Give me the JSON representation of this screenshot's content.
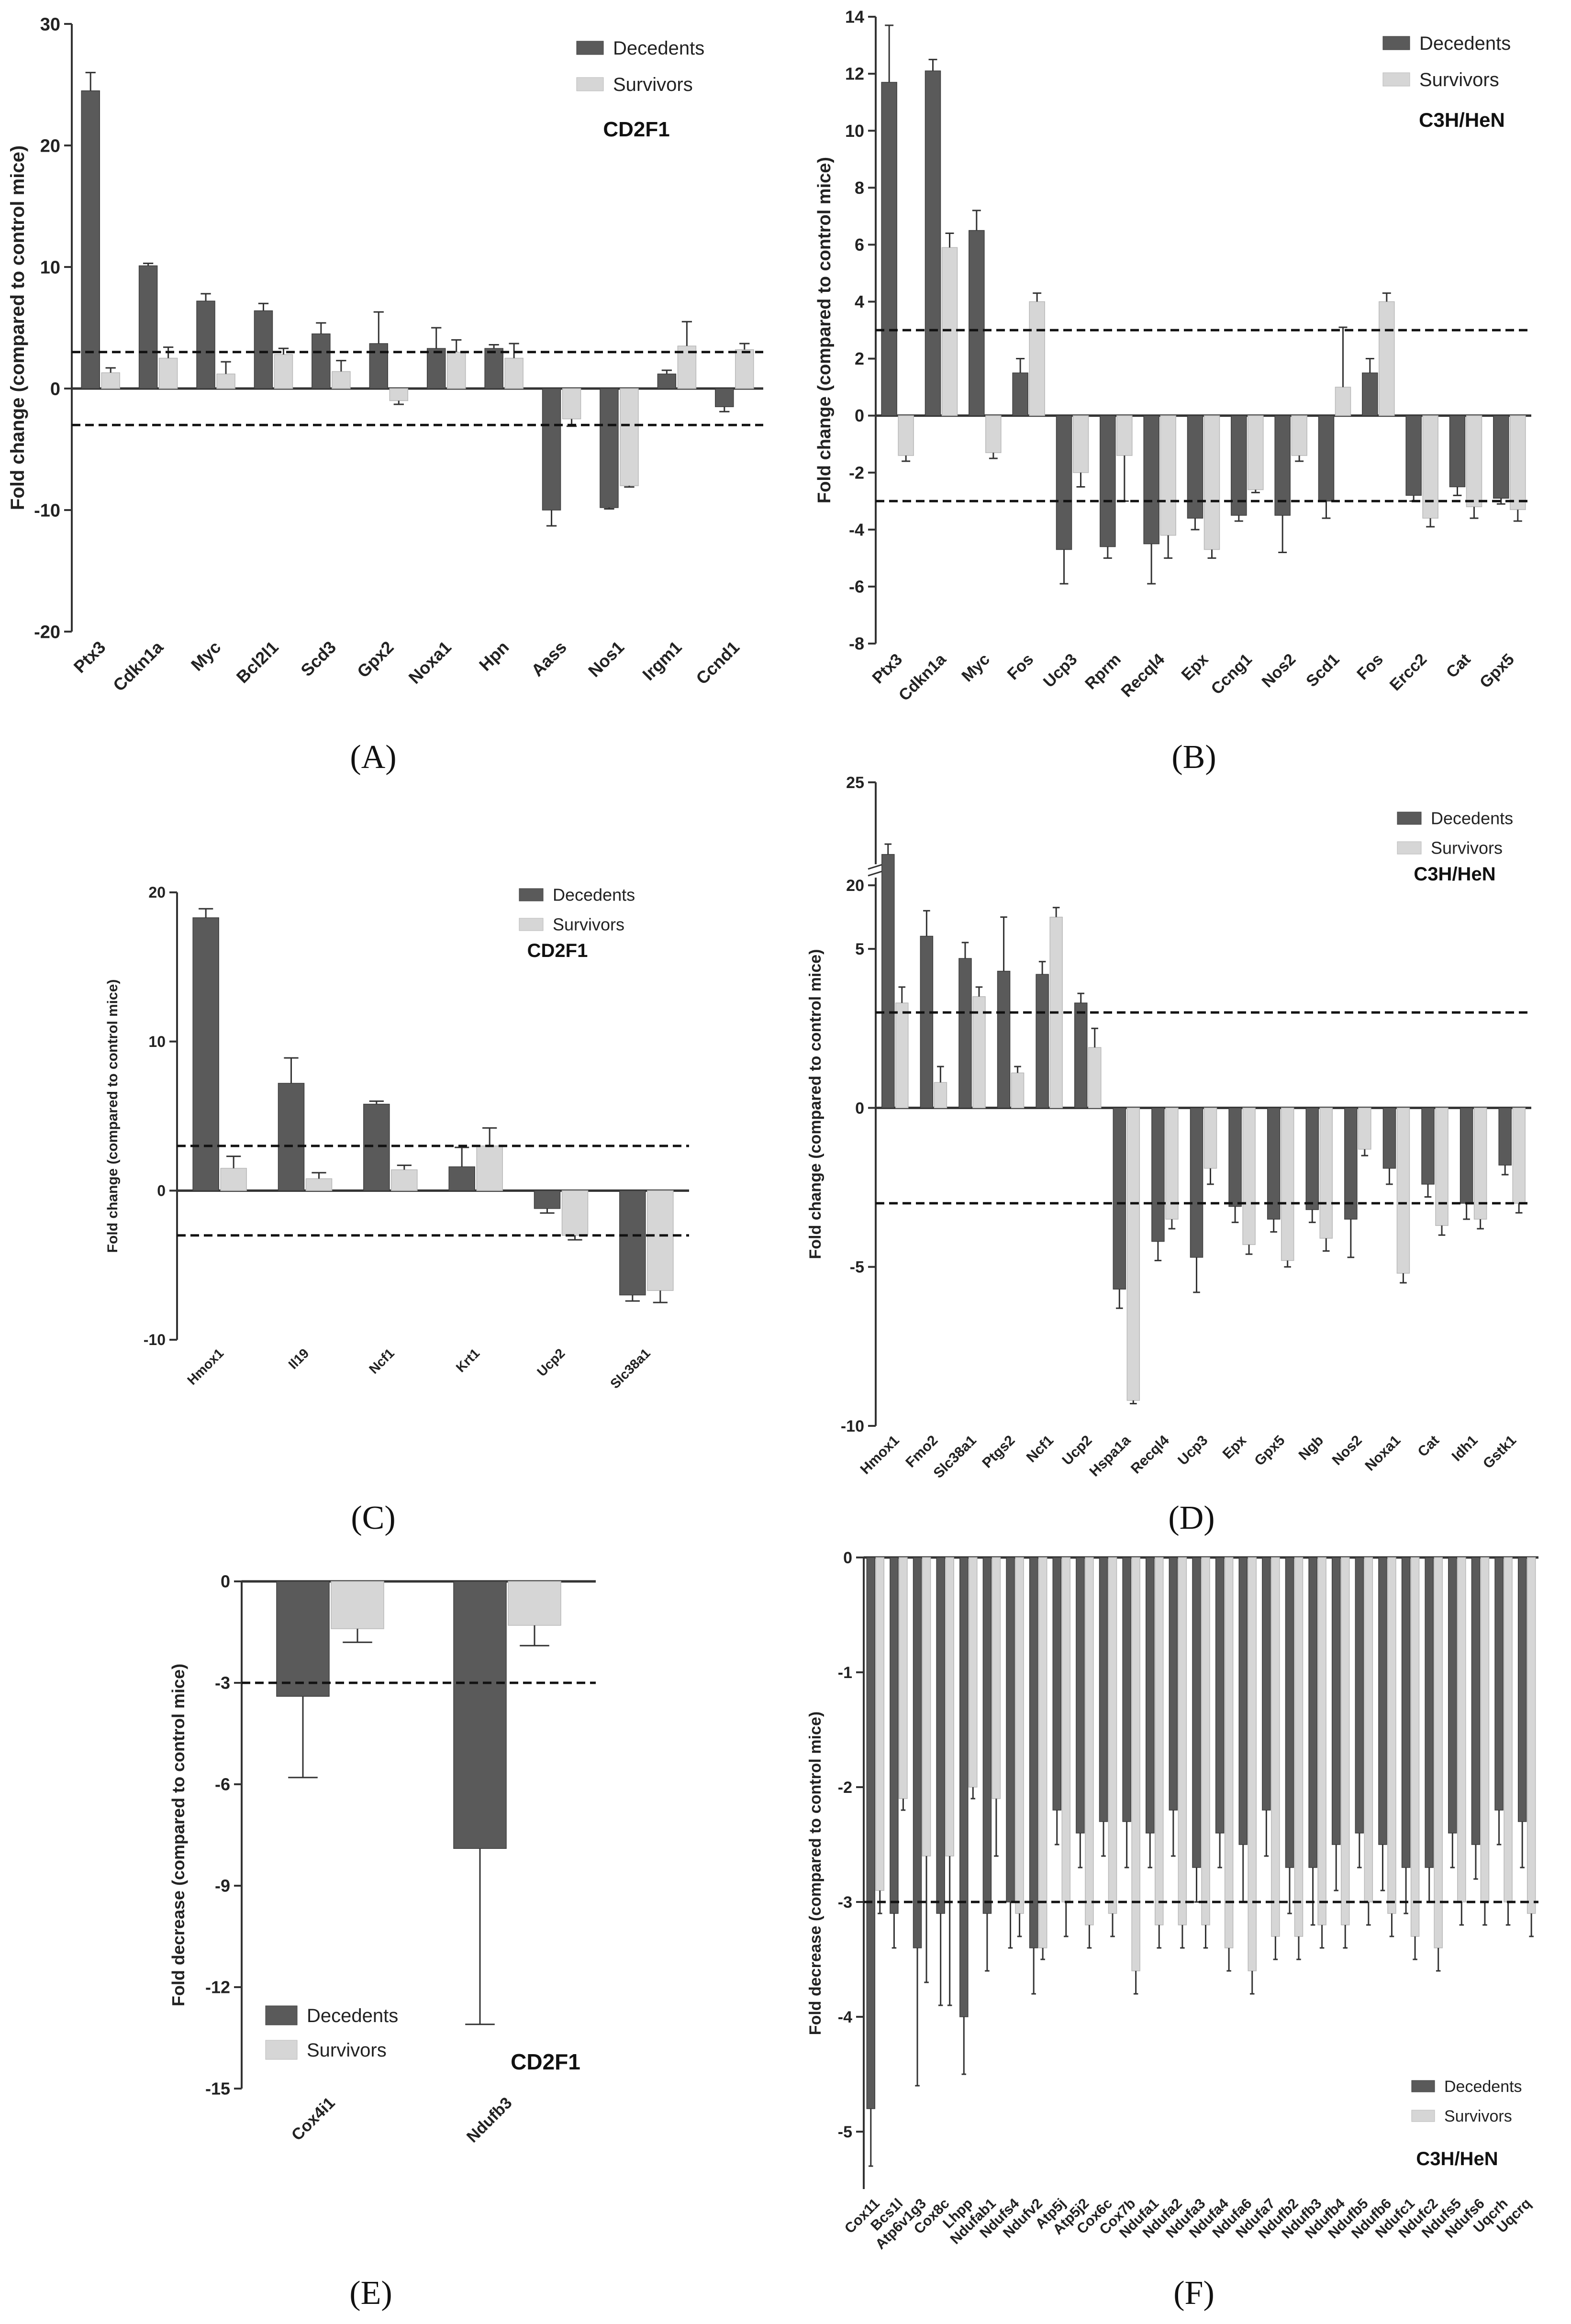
{
  "colors": {
    "decedents": "#5a5a5a",
    "survivors": "#d6d6d6",
    "axis": "#333333",
    "error": "#333333"
  },
  "chart_data": [
    {
      "id": "A",
      "panel_label": "(A)",
      "type": "bar",
      "title": "CD2F1",
      "ylabel": "Fold change (compared to control mice)",
      "ylim": [
        -20,
        30
      ],
      "yticks": [
        -20,
        -10,
        0,
        10,
        20,
        30
      ],
      "threshold_lines": [
        3,
        -3
      ],
      "legend": [
        "Decedents",
        "Survivors"
      ],
      "categories": [
        "Ptx3",
        "Cdkn1a",
        "Myc",
        "Bcl2l1",
        "Scd3",
        "Gpx2",
        "Noxa1",
        "Hpn",
        "Aass",
        "Nos1",
        "Irgm1",
        "Ccnd1"
      ],
      "series": [
        {
          "name": "Decedents",
          "values": [
            24.5,
            10.1,
            7.2,
            6.4,
            4.5,
            3.7,
            3.3,
            3.3,
            -10,
            -9.8,
            1.2,
            -1.5
          ],
          "errors": [
            1.5,
            0.2,
            0.6,
            0.6,
            0.9,
            2.6,
            1.7,
            0.3,
            1.3,
            0.1,
            0.3,
            0.4
          ]
        },
        {
          "name": "Survivors",
          "values": [
            1.3,
            2.5,
            1.2,
            2.8,
            1.4,
            -1,
            3,
            2.5,
            -2.5,
            -8,
            3.5,
            3.2
          ],
          "errors": [
            0.4,
            0.9,
            1,
            0.5,
            0.9,
            0.3,
            1,
            1.2,
            0.6,
            0.1,
            2,
            0.5
          ]
        }
      ]
    },
    {
      "id": "B",
      "panel_label": "(B)",
      "type": "bar",
      "title": "C3H/HeN",
      "ylabel": "Fold change (compared to control mice)",
      "ylim": [
        -8,
        14
      ],
      "yticks": [
        -8,
        -6,
        -4,
        -2,
        0,
        2,
        4,
        6,
        8,
        10,
        12,
        14
      ],
      "threshold_lines": [
        3,
        -3
      ],
      "legend": [
        "Decedents",
        "Survivors"
      ],
      "categories": [
        "Ptx3",
        "Cdkn1a",
        "Myc",
        "Fos",
        "Ucp3",
        "Rprm",
        "Recql4",
        "Epx",
        "Ccng1",
        "Nos2",
        "Scd1",
        "Fos",
        "Ercc2",
        "Cat",
        "Gpx5"
      ],
      "series": [
        {
          "name": "Decedents",
          "values": [
            11.7,
            12.1,
            6.5,
            1.5,
            -4.7,
            -4.6,
            -4.5,
            -3.6,
            -3.5,
            -3.5,
            -3,
            1.5,
            -2.8,
            -2.5,
            -2.9
          ],
          "errors": [
            2,
            0.4,
            0.7,
            0.5,
            1.2,
            0.4,
            1.4,
            0.4,
            0.2,
            1.3,
            0.6,
            0.5,
            0.2,
            0.3,
            0.2
          ]
        },
        {
          "name": "Survivors",
          "values": [
            -1.4,
            5.9,
            -1.3,
            4,
            -2,
            -1.4,
            -4.2,
            -4.7,
            -2.6,
            -1.4,
            1,
            4,
            -3.6,
            -3.2,
            -3.3
          ],
          "errors": [
            0.2,
            0.5,
            0.2,
            0.3,
            0.5,
            1.6,
            0.8,
            0.3,
            0.1,
            0.2,
            2.1,
            0.3,
            0.3,
            0.4,
            0.4
          ]
        }
      ]
    },
    {
      "id": "C",
      "panel_label": "(C)",
      "type": "bar",
      "title": "CD2F1",
      "ylabel": "Fold change (compared to control mice)",
      "ylim": [
        -10,
        20
      ],
      "yticks": [
        -10,
        0,
        10,
        20
      ],
      "threshold_lines": [
        3,
        -3
      ],
      "legend": [
        "Decedents",
        "Survivors"
      ],
      "categories": [
        "Hmox1",
        "Il19",
        "Ncf1",
        "Krt1",
        "Ucp2",
        "Slc38a1"
      ],
      "series": [
        {
          "name": "Decedents",
          "values": [
            18.3,
            7.2,
            5.8,
            1.6,
            -1.2,
            -7
          ],
          "errors": [
            0.6,
            1.7,
            0.2,
            1.3,
            0.3,
            0.4
          ]
        },
        {
          "name": "Survivors",
          "values": [
            1.5,
            0.8,
            1.4,
            3,
            -3,
            -6.7
          ],
          "errors": [
            0.8,
            0.4,
            0.3,
            1.2,
            0.3,
            0.8
          ]
        }
      ]
    },
    {
      "id": "D",
      "panel_label": "(D)",
      "type": "bar",
      "title": "C3H/HeN",
      "ylabel": "Fold change (compared to control mice)",
      "ylim": [
        -10,
        25
      ],
      "yticks": [
        -10,
        -5,
        0,
        5,
        20,
        25
      ],
      "axis_break": [
        7,
        20
      ],
      "threshold_lines": [
        3,
        -3
      ],
      "legend": [
        "Decedents",
        "Survivors"
      ],
      "categories": [
        "Hmox1",
        "Fmo2",
        "Slc38a1",
        "Ptgs2",
        "Ncf1",
        "Ucp2",
        "Hspa1a",
        "Recql4",
        "Ucp3",
        "Epx",
        "Gpx5",
        "Ngb",
        "Nos2",
        "Noxa1",
        "Cat",
        "Idh1",
        "Gstk1"
      ],
      "series": [
        {
          "name": "Decedents",
          "values": [
            21.5,
            5.4,
            4.7,
            4.3,
            4.2,
            3.3,
            -5.7,
            -4.2,
            -4.7,
            -3.1,
            -3.5,
            -3.2,
            -3.5,
            -1.9,
            -2.4,
            -3,
            -1.8
          ],
          "errors": [
            0.5,
            0.8,
            0.5,
            1.7,
            0.4,
            0.3,
            0.6,
            0.6,
            1.1,
            0.5,
            0.4,
            0.4,
            1.2,
            0.5,
            0.4,
            0.5,
            0.3
          ]
        },
        {
          "name": "Survivors",
          "values": [
            3.3,
            0.8,
            3.5,
            1.1,
            6,
            1.9,
            -9.2,
            -3.5,
            -1.9,
            -4.3,
            -4.8,
            -4.1,
            -1.3,
            -5.2,
            -3.7,
            -3.5,
            -3
          ],
          "errors": [
            0.5,
            0.5,
            0.3,
            0.2,
            0.3,
            0.6,
            0.1,
            0.3,
            0.5,
            0.3,
            0.2,
            0.4,
            0.2,
            0.3,
            0.3,
            0.3,
            0.3
          ]
        }
      ]
    },
    {
      "id": "E",
      "panel_label": "(E)",
      "type": "bar",
      "title": "CD2F1",
      "ylabel": "Fold decrease (compared to control mice)",
      "ylim": [
        -15,
        0
      ],
      "yticks": [
        -15,
        -12,
        -9,
        -6,
        -3,
        0
      ],
      "threshold_lines": [
        -3
      ],
      "legend": [
        "Decedents",
        "Survivors"
      ],
      "categories": [
        "Cox4i1",
        "Ndufb3"
      ],
      "series": [
        {
          "name": "Decedents",
          "values": [
            -3.4,
            -7.9
          ],
          "errors": [
            2.4,
            5.2
          ]
        },
        {
          "name": "Survivors",
          "values": [
            -1.4,
            -1.3
          ],
          "errors": [
            0.4,
            0.6
          ]
        }
      ]
    },
    {
      "id": "F",
      "panel_label": "(F)",
      "type": "bar",
      "title": "C3H/HeN",
      "ylabel": "Fold decrease (compared to control mice)",
      "ylim": [
        -5.5,
        0
      ],
      "yticks": [
        -5,
        -4,
        -3,
        -2,
        -1,
        0
      ],
      "threshold_lines": [
        -3
      ],
      "legend": [
        "Decedents",
        "Survivors"
      ],
      "categories": [
        "Cox11",
        "Bcs1l",
        "Atp6v1g3",
        "Cox8c",
        "Lhpp",
        "Ndufab1",
        "Ndufs4",
        "Ndufv2",
        "Atp5j",
        "Atp5j2",
        "Cox6c",
        "Cox7b",
        "Ndufa1",
        "Ndufa2",
        "Ndufa3",
        "Ndufa4",
        "Ndufa6",
        "Ndufa7",
        "Ndufb2",
        "Ndufb3",
        "Ndufb4",
        "Ndufb5",
        "Ndufb6",
        "Ndufc1",
        "Ndufc2",
        "Ndufs5",
        "Ndufs6",
        "Uqcrh",
        "Uqcrq"
      ],
      "series": [
        {
          "name": "Decedents",
          "values": [
            -4.8,
            -3.1,
            -3.4,
            -3.1,
            -4,
            -3.1,
            -3,
            -3.4,
            -2.2,
            -2.4,
            -2.3,
            -2.3,
            -2.4,
            -2.2,
            -2.7,
            -2.4,
            -2.5,
            -2.2,
            -2.7,
            -2.7,
            -2.5,
            -2.4,
            -2.5,
            -2.7,
            -2.7,
            -2.4,
            -2.5,
            -2.2,
            -2.3
          ],
          "errors": [
            0.5,
            0.3,
            1.2,
            0.8,
            0.5,
            0.5,
            0.4,
            0.4,
            0.3,
            0.3,
            0.3,
            0.4,
            0.3,
            0.4,
            0.3,
            0.3,
            0.5,
            0.4,
            0.4,
            0.5,
            0.4,
            0.3,
            0.4,
            0.4,
            0.3,
            0.3,
            0.3,
            0.3,
            0.4
          ]
        },
        {
          "name": "Survivors",
          "values": [
            -2.9,
            -2.1,
            -2.6,
            -2.6,
            -2,
            -2.1,
            -3.1,
            -3.4,
            -3,
            -3.2,
            -3.1,
            -3.6,
            -3.2,
            -3.2,
            -3.2,
            -3.4,
            -3.6,
            -3.3,
            -3.3,
            -3.2,
            -3.2,
            -3,
            -3.1,
            -3.3,
            -3.4,
            -3,
            -3,
            -3,
            -3.1
          ],
          "errors": [
            0.2,
            0.1,
            1.1,
            1.3,
            0.1,
            0.5,
            0.2,
            0.1,
            0.3,
            0.2,
            0.2,
            0.2,
            0.2,
            0.2,
            0.2,
            0.2,
            0.2,
            0.2,
            0.2,
            0.2,
            0.2,
            0.2,
            0.2,
            0.2,
            0.2,
            0.2,
            0.2,
            0.2,
            0.2
          ]
        }
      ]
    }
  ]
}
